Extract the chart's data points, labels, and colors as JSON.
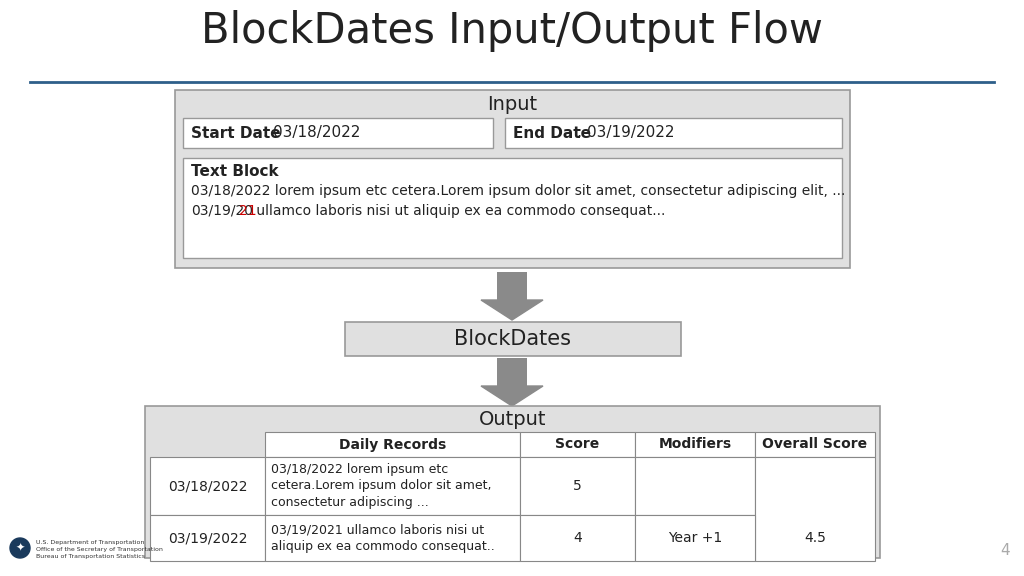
{
  "title": "BlockDates Input/Output Flow",
  "title_fontsize": 30,
  "title_color": "#222222",
  "bg_color": "#ffffff",
  "line_color": "#2e5f8a",
  "box_bg": "#e0e0e0",
  "box_border": "#999999",
  "white_bg": "#ffffff",
  "arrow_color": "#8a8a8a",
  "start_date_label": "Start Date",
  "start_date_value": ": 03/18/2022",
  "end_date_label": "End Date",
  "end_date_value": ": 03/19/2022",
  "textblock_title": "Text Block",
  "textblock_line1": "03/18/2022 lorem ipsum etc cetera.Lorem ipsum dolor sit amet, consectetur adipiscing elit, ...",
  "textblock_line2_pre": "03/19/20",
  "textblock_line2_red": "21",
  "textblock_line2_post": " ullamco laboris nisi ut aliquip ex ea commodo consequat...",
  "blockdates_label": "BlockDates",
  "output_label": "Output",
  "col_headers": [
    "Daily Records",
    "Score",
    "Modifiers",
    "Overall Score"
  ],
  "row1_date": "03/18/2022",
  "row1_record": "03/18/2022 lorem ipsum etc\ncetera.Lorem ipsum dolor sit amet,\nconsectetur adipiscing ...",
  "row1_score": "5",
  "row1_modifiers": "",
  "row1_overall": "4.5",
  "row2_date": "03/19/2022",
  "row2_record": "03/19/2021 ullamco laboris nisi ut\naliquip ex ea commodo consequat..",
  "row2_score": "4",
  "row2_modifiers": "Year +1",
  "row2_overall": "",
  "page_number": "4",
  "logo_text": "U.S. Department of Transportation\nOffice of the Secretary of Transportation\nBureau of Transportation Statistics"
}
